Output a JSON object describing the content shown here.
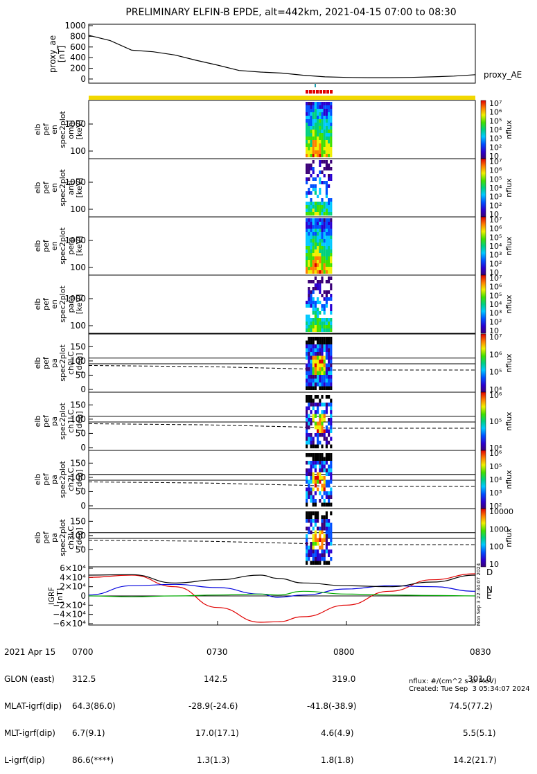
{
  "title": "PRELIMINARY ELFIN-B EPDE, alt=442km, 2021-04-15 07:00 to 08:30",
  "ae_panel": {
    "ylabel_lines": [
      "proxy_ae",
      "[nT]"
    ],
    "yticks": [
      "0",
      "200",
      "400",
      "600",
      "800",
      "1000"
    ],
    "legend": "proxy_AE"
  },
  "spec_panels": [
    {
      "ylabel_lines": [
        "elb",
        "pef",
        "en",
        "spec2plot",
        "omni",
        "[keV]"
      ],
      "yticks": [
        "100",
        "1000"
      ],
      "cbar_ticks": [
        "10",
        "10²",
        "10³",
        "10⁴",
        "10⁵",
        "10⁶",
        "10⁷"
      ],
      "cbar_label": "nflux"
    },
    {
      "ylabel_lines": [
        "elb",
        "pef",
        "en",
        "spec2plot",
        "anti",
        "[keV]"
      ],
      "yticks": [
        "100",
        "1000"
      ],
      "cbar_ticks": [
        "10",
        "10²",
        "10³",
        "10⁴",
        "10⁵",
        "10⁶",
        "10⁷"
      ],
      "cbar_label": "nflux"
    },
    {
      "ylabel_lines": [
        "elb",
        "pef",
        "en",
        "spec2plot",
        "perp",
        "[keV]"
      ],
      "yticks": [
        "100",
        "1000"
      ],
      "cbar_ticks": [
        "10",
        "10²",
        "10³",
        "10⁴",
        "10⁵",
        "10⁶",
        "10⁷"
      ],
      "cbar_label": "nflux"
    },
    {
      "ylabel_lines": [
        "elb",
        "pef",
        "en",
        "spec2plot",
        "para",
        "[keV]"
      ],
      "yticks": [
        "100",
        "1000"
      ],
      "cbar_ticks": [
        "10",
        "10²",
        "10³",
        "10⁴",
        "10⁵",
        "10⁶",
        "10⁷"
      ],
      "cbar_label": "nflux"
    }
  ],
  "pa_panels": [
    {
      "ylabel_lines": [
        "elb",
        "pef",
        "pa",
        "spec2plot",
        "ch0LC",
        "[deg]"
      ],
      "yticks": [
        "0",
        "50",
        "100",
        "150"
      ],
      "cbar_ticks": [
        "10⁴",
        "10⁵",
        "10⁶",
        "10⁷"
      ],
      "cbar_label": "nflux"
    },
    {
      "ylabel_lines": [
        "elb",
        "pef",
        "pa",
        "spec2plot",
        "ch1LC",
        "[deg]"
      ],
      "yticks": [
        "0",
        "50",
        "100",
        "150"
      ],
      "cbar_ticks": [
        "10⁴",
        "10⁵",
        "10⁶"
      ],
      "cbar_label": "nflux"
    },
    {
      "ylabel_lines": [
        "elb",
        "pef",
        "pa",
        "spec2plot",
        "ch2LC",
        "[deg]"
      ],
      "yticks": [
        "0",
        "50",
        "100",
        "150"
      ],
      "cbar_ticks": [
        "10²",
        "10³",
        "10⁴",
        "10⁵",
        "10⁶"
      ],
      "cbar_label": "nflux"
    },
    {
      "ylabel_lines": [
        "elb",
        "pef",
        "pa",
        "spec2plot",
        "ch3LC",
        "[deg]"
      ],
      "yticks": [
        "50",
        "100",
        "150"
      ],
      "cbar_ticks": [
        "10",
        "100",
        "1000",
        "10000"
      ],
      "cbar_label": "nflux"
    }
  ],
  "igrf_panel": {
    "ylabel_lines": [
      "IGRF",
      "[nT]"
    ],
    "yticks": [
      "−6×10⁴",
      "−4×10⁴",
      "−2×10⁴",
      "0",
      "2×10⁴",
      "4×10⁴",
      "6×10⁴"
    ],
    "legend": [
      "D",
      "N",
      "E"
    ],
    "stamp": "Mon Sep  3 22:34:07 2024"
  },
  "footer": {
    "rows": [
      [
        "2021 Apr 15",
        "0700",
        "0730",
        "0800",
        "0830"
      ],
      [
        "GLON (east)",
        "312.5",
        "142.5",
        "319.0",
        "301.0"
      ],
      [
        "MLAT-igrf(dip)",
        "64.3(86.0)",
        "-28.9(-24.6)",
        "-41.8(-38.9)",
        "74.5(77.2)"
      ],
      [
        "MLT-igrf(dip)",
        "6.7(9.1)",
        "17.0(17.1)",
        "4.6(4.9)",
        "5.5(5.1)"
      ],
      [
        "L-igrf(dip)",
        "86.6(****)",
        "1.3(1.3)",
        "1.8(1.8)",
        "14.2(21.7)"
      ]
    ],
    "units": "nflux: #/(cm^2 s sr MeV)",
    "created": "Created: Tue Sep  3 05:34:07 2024"
  },
  "colors": {
    "ae": "#000000",
    "igrf_d": "#e00000",
    "igrf_n": "#0000dd",
    "igrf_e": "#00aa00",
    "status_bar": "#f2d800",
    "flag": "#e00000"
  },
  "chart_data": [
    {
      "type": "line",
      "name": "proxy_ae",
      "x_minutes": [
        0,
        5,
        10,
        15,
        20,
        25,
        30,
        35,
        40,
        45,
        50,
        55,
        60,
        65,
        70,
        75,
        80,
        85,
        90
      ],
      "values": [
        820,
        720,
        540,
        510,
        450,
        350,
        260,
        160,
        130,
        110,
        70,
        40,
        30,
        25,
        25,
        30,
        40,
        55,
        80
      ],
      "ylim": [
        0,
        1000
      ]
    },
    {
      "type": "line",
      "name": "IGRF",
      "x_minutes": [
        0,
        10,
        20,
        30,
        40,
        44,
        50,
        60,
        70,
        80,
        90
      ],
      "series": [
        {
          "name": "D",
          "values": [
            40000,
            45000,
            20000,
            -25000,
            -57000,
            -56000,
            -45000,
            -20000,
            10000,
            35000,
            48000
          ]
        },
        {
          "name": "N",
          "values": [
            2000,
            22000,
            25000,
            18000,
            4000,
            -3000,
            2000,
            15000,
            22000,
            20000,
            10000
          ]
        },
        {
          "name": "E",
          "values": [
            0,
            -2000,
            0,
            2000,
            4000,
            2000,
            10000,
            4000,
            2000,
            1000,
            0
          ]
        },
        {
          "name": "total",
          "values": [
            45000,
            46000,
            28000,
            35000,
            45000,
            38000,
            28000,
            22000,
            20000,
            30000,
            45000
          ]
        }
      ],
      "ylim": [
        -60000,
        60000
      ]
    }
  ]
}
